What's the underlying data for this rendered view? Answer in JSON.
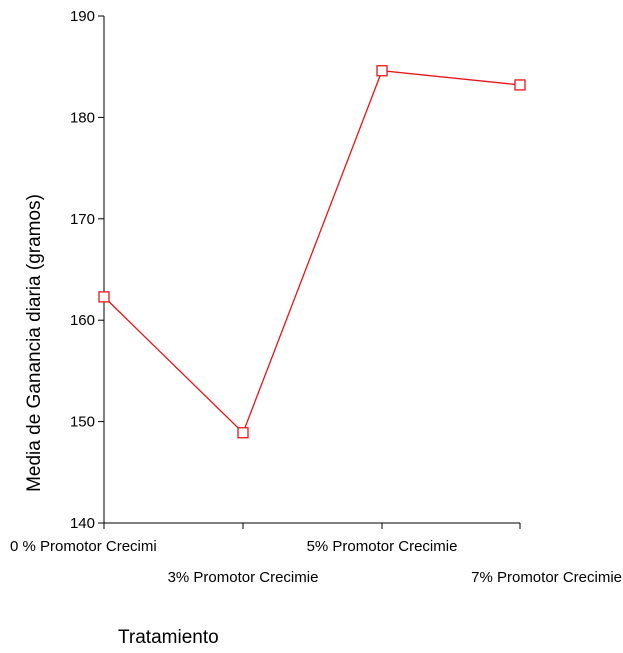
{
  "chart_data": {
    "type": "line",
    "categories": [
      "0 % Promotor Crecimi",
      "3% Promotor Crecimie",
      "5% Promotor Crecimie",
      "7% Promotor Crecimie"
    ],
    "series": [
      {
        "values": [
          162.3,
          148.9,
          184.6,
          183.2
        ],
        "color": "#e8141b",
        "marker": "open-square"
      }
    ],
    "xlabel": "Tratamiento",
    "ylabel": "Media de Ganancia diaria (gramos)",
    "ylim": [
      140,
      190
    ],
    "yticks": [
      140,
      150,
      160,
      170,
      180,
      190
    ],
    "grid": false,
    "legend": "none"
  }
}
